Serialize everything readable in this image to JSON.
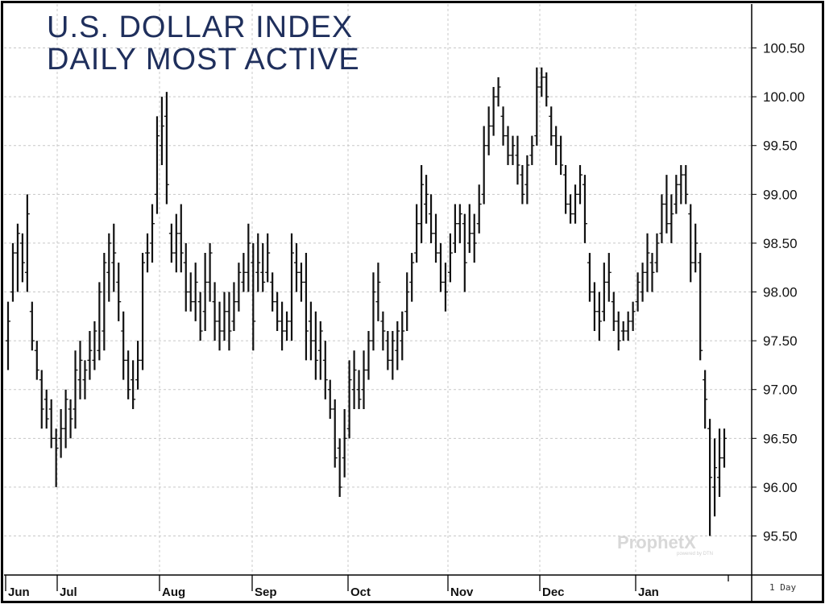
{
  "chart_data": {
    "type": "ohlc",
    "title": "U.S. DOLLAR INDEX",
    "subtitle": "DAILY MOST ACTIVE",
    "ylim": [
      95.1,
      100.95
    ],
    "y_ticks": [
      "100.50",
      "100.00",
      "99.50",
      "99.00",
      "98.50",
      "98.00",
      "97.50",
      "97.00",
      "96.50",
      "96.00",
      "95.50"
    ],
    "x_months": [
      "Jun",
      "Jul",
      "Aug",
      "Sep",
      "Oct",
      "Nov",
      "Dec",
      "Jan"
    ],
    "interval_label": "1 Day",
    "grid": true,
    "bars": [
      {
        "h": 97.9,
        "l": 97.2,
        "o": 97.5,
        "c": 97.7
      },
      {
        "h": 98.5,
        "l": 97.9,
        "o": 98.0,
        "c": 98.4
      },
      {
        "h": 98.7,
        "l": 98.0,
        "o": 98.4,
        "c": 98.6
      },
      {
        "h": 98.6,
        "l": 98.1,
        "o": 98.5,
        "c": 98.3
      },
      {
        "h": 99.0,
        "l": 98.0,
        "o": 98.2,
        "c": 98.8
      },
      {
        "h": 97.9,
        "l": 97.4,
        "o": 97.8,
        "c": 97.5
      },
      {
        "h": 97.5,
        "l": 97.1,
        "o": 97.4,
        "c": 97.2
      },
      {
        "h": 97.2,
        "l": 96.6,
        "o": 97.1,
        "c": 96.8
      },
      {
        "h": 97.0,
        "l": 96.6,
        "o": 96.9,
        "c": 96.7
      },
      {
        "h": 96.9,
        "l": 96.4,
        "o": 96.8,
        "c": 96.5
      },
      {
        "h": 96.6,
        "l": 96.0,
        "o": 96.5,
        "c": 96.4
      },
      {
        "h": 96.8,
        "l": 96.3,
        "o": 96.5,
        "c": 96.6
      },
      {
        "h": 97.0,
        "l": 96.4,
        "o": 96.6,
        "c": 96.9
      },
      {
        "h": 96.9,
        "l": 96.5,
        "o": 96.8,
        "c": 96.7
      },
      {
        "h": 97.4,
        "l": 96.6,
        "o": 96.8,
        "c": 97.2
      },
      {
        "h": 97.5,
        "l": 96.9,
        "o": 97.1,
        "c": 97.3
      },
      {
        "h": 97.3,
        "l": 96.9,
        "o": 97.1,
        "c": 97.2
      },
      {
        "h": 97.6,
        "l": 97.1,
        "o": 97.3,
        "c": 97.4
      },
      {
        "h": 97.7,
        "l": 97.2,
        "o": 97.3,
        "c": 97.6
      },
      {
        "h": 98.1,
        "l": 97.3,
        "o": 97.4,
        "c": 98.0
      },
      {
        "h": 98.4,
        "l": 97.4,
        "o": 97.6,
        "c": 98.3
      },
      {
        "h": 98.6,
        "l": 97.9,
        "o": 98.2,
        "c": 98.5
      },
      {
        "h": 98.7,
        "l": 98.0,
        "o": 98.3,
        "c": 98.4
      },
      {
        "h": 98.3,
        "l": 97.7,
        "o": 98.1,
        "c": 97.9
      },
      {
        "h": 97.8,
        "l": 97.1,
        "o": 97.6,
        "c": 97.3
      },
      {
        "h": 97.4,
        "l": 96.9,
        "o": 97.3,
        "c": 97.0
      },
      {
        "h": 97.3,
        "l": 96.8,
        "o": 97.1,
        "c": 96.9
      },
      {
        "h": 97.5,
        "l": 97.0,
        "o": 97.1,
        "c": 97.3
      },
      {
        "h": 98.4,
        "l": 97.2,
        "o": 97.3,
        "c": 98.3
      },
      {
        "h": 98.6,
        "l": 98.2,
        "o": 98.4,
        "c": 98.4
      },
      {
        "h": 98.9,
        "l": 98.3,
        "o": 98.5,
        "c": 98.7
      },
      {
        "h": 99.8,
        "l": 98.8,
        "o": 99.0,
        "c": 99.6
      },
      {
        "h": 100.0,
        "l": 99.3,
        "o": 99.5,
        "c": 99.7
      },
      {
        "h": 100.05,
        "l": 98.9,
        "o": 99.8,
        "c": 99.1
      },
      {
        "h": 98.7,
        "l": 98.3,
        "o": 98.6,
        "c": 98.4
      },
      {
        "h": 98.8,
        "l": 98.2,
        "o": 98.4,
        "c": 98.6
      },
      {
        "h": 98.9,
        "l": 98.2,
        "o": 98.6,
        "c": 98.4
      },
      {
        "h": 98.5,
        "l": 97.8,
        "o": 98.3,
        "c": 98.0
      },
      {
        "h": 98.2,
        "l": 97.8,
        "o": 98.0,
        "c": 97.9
      },
      {
        "h": 98.3,
        "l": 97.7,
        "o": 97.9,
        "c": 98.1
      },
      {
        "h": 98.0,
        "l": 97.5,
        "o": 97.9,
        "c": 97.6
      },
      {
        "h": 98.4,
        "l": 97.6,
        "o": 97.8,
        "c": 98.1
      },
      {
        "h": 98.5,
        "l": 97.9,
        "o": 98.1,
        "c": 98.4
      },
      {
        "h": 98.1,
        "l": 97.5,
        "o": 97.9,
        "c": 97.7
      },
      {
        "h": 97.9,
        "l": 97.4,
        "o": 97.7,
        "c": 97.6
      },
      {
        "h": 98.0,
        "l": 97.5,
        "o": 97.6,
        "c": 97.8
      },
      {
        "h": 98.0,
        "l": 97.4,
        "o": 97.8,
        "c": 97.6
      },
      {
        "h": 98.1,
        "l": 97.6,
        "o": 97.7,
        "c": 97.9
      },
      {
        "h": 98.3,
        "l": 97.8,
        "o": 97.9,
        "c": 98.2
      },
      {
        "h": 98.4,
        "l": 98.0,
        "o": 98.1,
        "c": 98.2
      },
      {
        "h": 98.7,
        "l": 98.0,
        "o": 98.2,
        "c": 98.5
      },
      {
        "h": 98.5,
        "l": 97.4,
        "o": 98.3,
        "c": 97.7
      },
      {
        "h": 98.6,
        "l": 98.0,
        "o": 98.2,
        "c": 98.3
      },
      {
        "h": 98.5,
        "l": 98.0,
        "o": 98.2,
        "c": 98.1
      },
      {
        "h": 98.6,
        "l": 98.1,
        "o": 98.2,
        "c": 98.4
      },
      {
        "h": 98.2,
        "l": 97.8,
        "o": 98.1,
        "c": 97.9
      },
      {
        "h": 98.0,
        "l": 97.6,
        "o": 97.9,
        "c": 97.7
      },
      {
        "h": 97.9,
        "l": 97.4,
        "o": 97.7,
        "c": 97.6
      },
      {
        "h": 97.8,
        "l": 97.5,
        "o": 97.6,
        "c": 97.7
      },
      {
        "h": 98.6,
        "l": 97.5,
        "o": 97.7,
        "c": 98.4
      },
      {
        "h": 98.5,
        "l": 98.0,
        "o": 98.3,
        "c": 98.2
      },
      {
        "h": 98.3,
        "l": 97.9,
        "o": 98.2,
        "c": 98.1
      },
      {
        "h": 98.4,
        "l": 97.3,
        "o": 98.1,
        "c": 97.6
      },
      {
        "h": 97.9,
        "l": 97.3,
        "o": 97.7,
        "c": 97.5
      },
      {
        "h": 97.8,
        "l": 97.1,
        "o": 97.5,
        "c": 97.3
      },
      {
        "h": 97.7,
        "l": 97.1,
        "o": 97.4,
        "c": 97.6
      },
      {
        "h": 97.5,
        "l": 96.9,
        "o": 97.3,
        "c": 97.1
      },
      {
        "h": 97.1,
        "l": 96.7,
        "o": 97.0,
        "c": 96.8
      },
      {
        "h": 96.9,
        "l": 96.2,
        "o": 96.8,
        "c": 96.3
      },
      {
        "h": 96.5,
        "l": 95.9,
        "o": 96.4,
        "c": 96.0
      },
      {
        "h": 96.8,
        "l": 96.1,
        "o": 96.3,
        "c": 96.5
      },
      {
        "h": 97.3,
        "l": 96.5,
        "o": 96.6,
        "c": 97.1
      },
      {
        "h": 97.4,
        "l": 96.8,
        "o": 97.0,
        "c": 97.2
      },
      {
        "h": 97.2,
        "l": 96.8,
        "o": 97.0,
        "c": 96.9
      },
      {
        "h": 97.4,
        "l": 96.8,
        "o": 97.0,
        "c": 97.2
      },
      {
        "h": 97.6,
        "l": 97.1,
        "o": 97.2,
        "c": 97.5
      },
      {
        "h": 98.2,
        "l": 97.4,
        "o": 97.5,
        "c": 98.0
      },
      {
        "h": 98.3,
        "l": 97.7,
        "o": 97.9,
        "c": 98.1
      },
      {
        "h": 97.8,
        "l": 97.4,
        "o": 97.7,
        "c": 97.6
      },
      {
        "h": 97.6,
        "l": 97.2,
        "o": 97.5,
        "c": 97.3
      },
      {
        "h": 97.6,
        "l": 97.1,
        "o": 97.3,
        "c": 97.5
      },
      {
        "h": 97.7,
        "l": 97.2,
        "o": 97.4,
        "c": 97.6
      },
      {
        "h": 97.8,
        "l": 97.3,
        "o": 97.5,
        "c": 97.6
      },
      {
        "h": 98.2,
        "l": 97.6,
        "o": 97.8,
        "c": 98.0
      },
      {
        "h": 98.4,
        "l": 97.9,
        "o": 98.1,
        "c": 98.3
      },
      {
        "h": 98.9,
        "l": 98.3,
        "o": 98.4,
        "c": 98.7
      },
      {
        "h": 99.3,
        "l": 98.5,
        "o": 98.7,
        "c": 99.1
      },
      {
        "h": 99.2,
        "l": 98.7,
        "o": 98.9,
        "c": 99.0
      },
      {
        "h": 99.0,
        "l": 98.5,
        "o": 98.8,
        "c": 98.6
      },
      {
        "h": 98.8,
        "l": 98.3,
        "o": 98.6,
        "c": 98.4
      },
      {
        "h": 98.5,
        "l": 98.0,
        "o": 98.4,
        "c": 98.1
      },
      {
        "h": 98.3,
        "l": 97.8,
        "o": 98.1,
        "c": 98.0
      },
      {
        "h": 98.6,
        "l": 98.1,
        "o": 98.2,
        "c": 98.4
      },
      {
        "h": 98.9,
        "l": 98.4,
        "o": 98.5,
        "c": 98.7
      },
      {
        "h": 98.9,
        "l": 98.5,
        "o": 98.7,
        "c": 98.8
      },
      {
        "h": 98.8,
        "l": 98.0,
        "o": 98.7,
        "c": 98.3
      },
      {
        "h": 98.9,
        "l": 98.4,
        "o": 98.5,
        "c": 98.6
      },
      {
        "h": 98.8,
        "l": 98.3,
        "o": 98.6,
        "c": 98.5
      },
      {
        "h": 99.1,
        "l": 98.6,
        "o": 98.7,
        "c": 98.9
      },
      {
        "h": 99.7,
        "l": 98.9,
        "o": 99.0,
        "c": 99.5
      },
      {
        "h": 99.9,
        "l": 99.4,
        "o": 99.5,
        "c": 99.7
      },
      {
        "h": 100.1,
        "l": 99.6,
        "o": 99.7,
        "c": 100.0
      },
      {
        "h": 100.2,
        "l": 99.9,
        "o": 100.0,
        "c": 100.1
      },
      {
        "h": 99.9,
        "l": 99.5,
        "o": 99.8,
        "c": 99.6
      },
      {
        "h": 99.7,
        "l": 99.3,
        "o": 99.6,
        "c": 99.4
      },
      {
        "h": 99.6,
        "l": 99.3,
        "o": 99.4,
        "c": 99.5
      },
      {
        "h": 99.6,
        "l": 99.1,
        "o": 99.4,
        "c": 99.3
      },
      {
        "h": 99.3,
        "l": 98.9,
        "o": 99.2,
        "c": 99.0
      },
      {
        "h": 99.4,
        "l": 98.9,
        "o": 99.1,
        "c": 99.3
      },
      {
        "h": 99.6,
        "l": 99.3,
        "o": 99.4,
        "c": 99.5
      },
      {
        "h": 100.3,
        "l": 99.5,
        "o": 99.6,
        "c": 100.1
      },
      {
        "h": 100.3,
        "l": 100.0,
        "o": 100.1,
        "c": 100.2
      },
      {
        "h": 100.25,
        "l": 99.9,
        "o": 100.2,
        "c": 100.0
      },
      {
        "h": 99.9,
        "l": 99.5,
        "o": 99.8,
        "c": 99.6
      },
      {
        "h": 99.7,
        "l": 99.3,
        "o": 99.6,
        "c": 99.5
      },
      {
        "h": 99.6,
        "l": 99.2,
        "o": 99.5,
        "c": 99.3
      },
      {
        "h": 99.3,
        "l": 98.8,
        "o": 99.2,
        "c": 98.9
      },
      {
        "h": 99.0,
        "l": 98.7,
        "o": 98.9,
        "c": 98.8
      },
      {
        "h": 99.1,
        "l": 98.7,
        "o": 98.8,
        "c": 99.0
      },
      {
        "h": 99.3,
        "l": 98.9,
        "o": 99.0,
        "c": 99.2
      },
      {
        "h": 99.2,
        "l": 98.5,
        "o": 99.1,
        "c": 98.7
      },
      {
        "h": 98.4,
        "l": 97.9,
        "o": 98.3,
        "c": 98.0
      },
      {
        "h": 98.1,
        "l": 97.6,
        "o": 98.0,
        "c": 97.8
      },
      {
        "h": 98.0,
        "l": 97.5,
        "o": 97.8,
        "c": 97.7
      },
      {
        "h": 98.3,
        "l": 97.7,
        "o": 97.8,
        "c": 98.1
      },
      {
        "h": 98.4,
        "l": 97.9,
        "o": 98.1,
        "c": 98.2
      },
      {
        "h": 98.0,
        "l": 97.6,
        "o": 97.9,
        "c": 97.7
      },
      {
        "h": 97.8,
        "l": 97.4,
        "o": 97.7,
        "c": 97.5
      },
      {
        "h": 97.7,
        "l": 97.5,
        "o": 97.6,
        "c": 97.6
      },
      {
        "h": 97.8,
        "l": 97.5,
        "o": 97.6,
        "c": 97.7
      },
      {
        "h": 97.9,
        "l": 97.6,
        "o": 97.7,
        "c": 97.8
      },
      {
        "h": 98.2,
        "l": 97.8,
        "o": 97.9,
        "c": 98.1
      },
      {
        "h": 98.3,
        "l": 97.9,
        "o": 98.0,
        "c": 98.2
      },
      {
        "h": 98.6,
        "l": 98.0,
        "o": 98.2,
        "c": 98.4
      },
      {
        "h": 98.4,
        "l": 98.0,
        "o": 98.3,
        "c": 98.2
      },
      {
        "h": 98.6,
        "l": 98.2,
        "o": 98.3,
        "c": 98.5
      },
      {
        "h": 99.0,
        "l": 98.5,
        "o": 98.6,
        "c": 98.9
      },
      {
        "h": 99.2,
        "l": 98.6,
        "o": 98.9,
        "c": 98.7
      },
      {
        "h": 99.0,
        "l": 98.5,
        "o": 98.7,
        "c": 98.8
      },
      {
        "h": 99.2,
        "l": 98.8,
        "o": 98.9,
        "c": 99.1
      },
      {
        "h": 99.3,
        "l": 98.9,
        "o": 99.1,
        "c": 99.2
      },
      {
        "h": 99.3,
        "l": 98.9,
        "o": 99.2,
        "c": 99.0
      },
      {
        "h": 98.9,
        "l": 98.1,
        "o": 98.8,
        "c": 98.3
      },
      {
        "h": 98.7,
        "l": 98.2,
        "o": 98.3,
        "c": 98.5
      },
      {
        "h": 98.4,
        "l": 97.3,
        "o": 98.3,
        "c": 97.4
      },
      {
        "h": 97.2,
        "l": 96.6,
        "o": 97.1,
        "c": 96.9
      },
      {
        "h": 96.7,
        "l": 95.5,
        "o": 96.6,
        "c": 96.1
      },
      {
        "h": 96.5,
        "l": 95.7,
        "o": 96.0,
        "c": 96.2
      },
      {
        "h": 96.6,
        "l": 95.9,
        "o": 96.1,
        "c": 96.3
      },
      {
        "h": 96.6,
        "l": 96.2,
        "o": 96.3,
        "c": 96.5
      }
    ]
  },
  "watermark": {
    "brand": "ProphetX",
    "tagline": "powered by DTN"
  }
}
